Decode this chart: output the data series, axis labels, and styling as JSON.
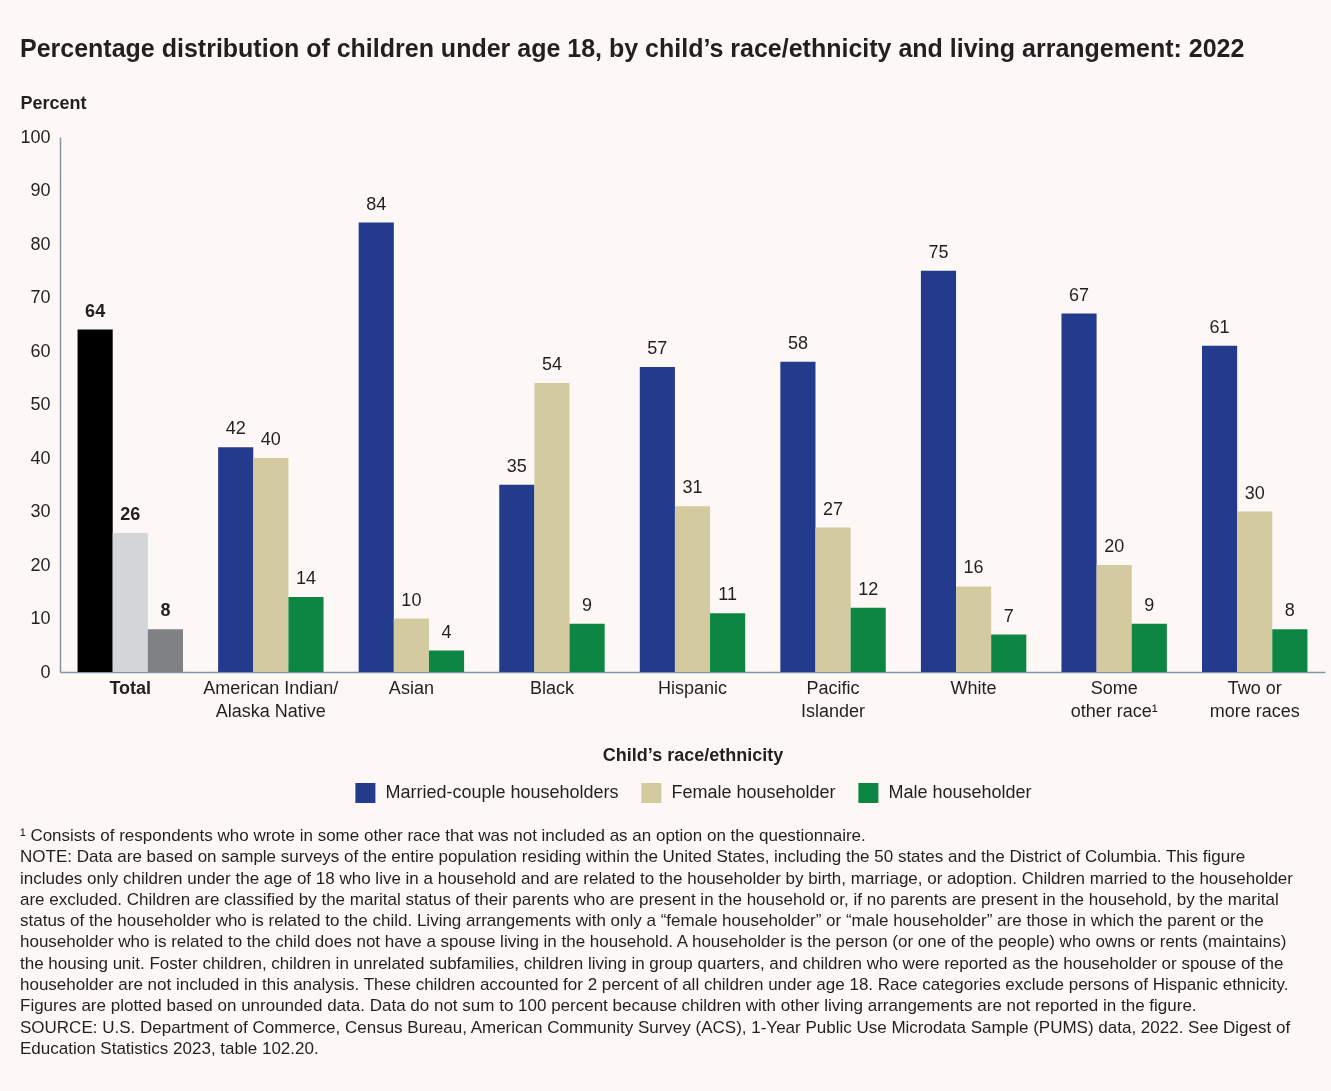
{
  "chart_data": {
    "type": "bar",
    "title": "Percentage distribution of children under age 18, by child’s race/ethnicity and living arrangement: 2022",
    "ylabel": "Percent",
    "xlabel": "Child’s race/ethnicity",
    "categories": [
      "Total",
      "American Indian/\nAlaska Native",
      "Asian",
      "Black",
      "Hispanic",
      "Pacific\nIslander",
      "White",
      "Some\nother race¹",
      "Two or\nmore races"
    ],
    "series": [
      {
        "name": "Married-couple householders",
        "color": "#243a8c",
        "colors": [
          "#000000",
          "#243a8c",
          "#243a8c",
          "#243a8c",
          "#243a8c",
          "#243a8c",
          "#243a8c",
          "#243a8c",
          "#243a8c"
        ],
        "values": [
          64,
          42,
          84,
          35,
          57,
          58,
          75,
          67,
          61
        ]
      },
      {
        "name": "Female householder",
        "color": "#d3cb9f",
        "colors": [
          "#d4d5d8",
          "#d3cb9f",
          "#d3cb9f",
          "#d3cb9f",
          "#d3cb9f",
          "#d3cb9f",
          "#d3cb9f",
          "#d3cb9f",
          "#d3cb9f"
        ],
        "values": [
          26,
          40,
          10,
          54,
          31,
          27,
          16,
          20,
          30
        ]
      },
      {
        "name": "Male householder",
        "color": "#0e8643",
        "colors": [
          "#808184",
          "#0e8643",
          "#0e8643",
          "#0e8643",
          "#0e8643",
          "#0e8643",
          "#0e8643",
          "#0e8643",
          "#0e8643"
        ],
        "values": [
          8,
          14,
          4,
          9,
          11,
          12,
          7,
          9,
          8
        ]
      }
    ],
    "ylim": [
      0,
      100
    ],
    "yticks": [
      0,
      10,
      20,
      30,
      40,
      50,
      60,
      70,
      80,
      90,
      100
    ],
    "data_labels": true,
    "legend": "bottom",
    "annotations": [
      "¹ Consists of respondents who wrote in some other race that was not included as an option on the questionnaire.",
      "NOTE: Data are based on sample surveys of the entire population residing within the United States, including the 50 states and the District of Columbia. This figure includes only children under the age of 18 who live in a household and are related to the householder by birth, marriage, or adoption. Children married to the householder are excluded. Children are classified by the marital status of their parents who are present in the household or, if no parents are present in the household, by the marital status of the householder who is related to the child. Living arrangements with only a “female householder” or “male householder” are those in which the parent or the householder who is related to the child does not have a spouse living in the household. A householder is the person (or one of the people) who owns or rents (maintains) the housing unit. Foster children, children in unrelated subfamilies, children living in group quarters, and children who were reported as the householder or spouse of the householder are not included in this analysis. These children accounted for 2 percent of all children under age 18. Race categories exclude persons of Hispanic ethnicity. Figures are plotted based on unrounded data. Data do not sum to 100 percent because children with other living arrangements are not reported in the figure.",
      "SOURCE: U.S. Department of Commerce, Census Bureau, American Community Survey (ACS), 1-Year Public Use Microdata Sample (PUMS) data, 2022. See Digest of Education Statistics 2023, table 102.20."
    ]
  }
}
